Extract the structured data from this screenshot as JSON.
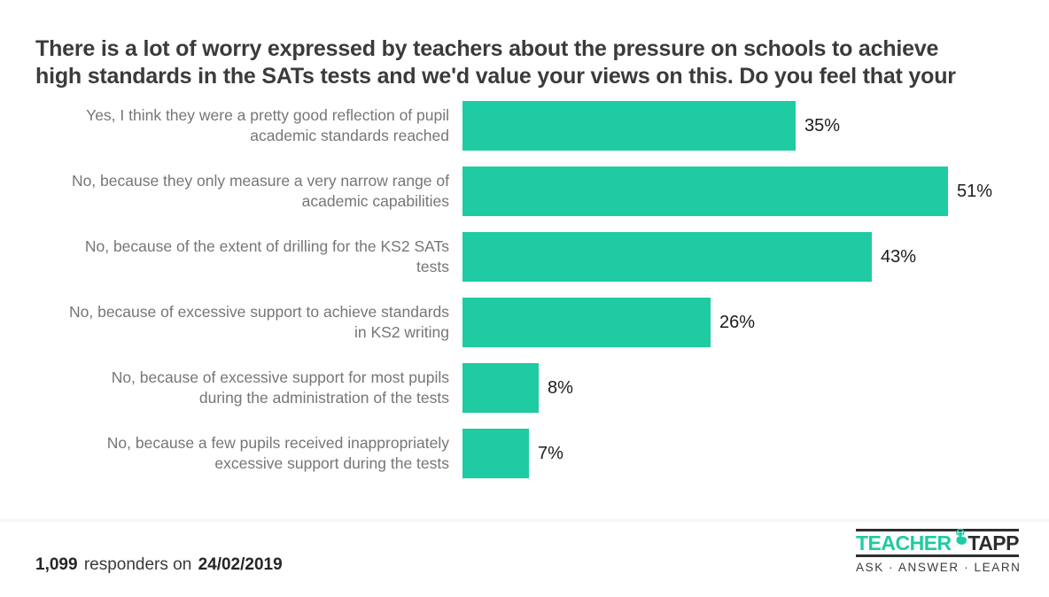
{
  "chart_data": {
    "type": "bar",
    "orientation": "horizontal",
    "title": "There is a lot of worry expressed by teachers about the pressure on schools to achieve high standards in the SATs tests and we'd value your views on this. Do you feel that your",
    "title_lines": [
      "There is a lot of worry expressed by teachers about the pressure on schools to achieve",
      "high standards in the SATs tests and we'd value your views on this. Do you feel that your"
    ],
    "categories": [
      "Yes, I think they were a pretty good reflection of pupil academic standards reached",
      "No, because they only measure a very narrow range of academic capabilities",
      "No, because of the extent of drilling for the KS2 SATs tests",
      "No, because of excessive support to achieve standards in KS2 writing",
      "No, because of excessive support for most pupils during the administration of the tests",
      "No, because a few pupils received inappropriately excessive support during the tests"
    ],
    "category_lines": [
      [
        "Yes, I think they were a pretty good reflection of pupil",
        "academic standards reached"
      ],
      [
        "No, because they only measure a very narrow range of",
        "academic capabilities"
      ],
      [
        "No, because of the extent of drilling for the KS2 SATs",
        "tests"
      ],
      [
        "No, because of excessive support to achieve standards",
        "in KS2 writing"
      ],
      [
        "No, because of excessive support for most pupils",
        "during the administration of the tests"
      ],
      [
        "No, because a few pupils received inappropriately",
        "excessive support during the tests"
      ]
    ],
    "values": [
      35,
      51,
      43,
      26,
      8,
      7
    ],
    "value_labels": [
      "35%",
      "51%",
      "43%",
      "26%",
      "8%",
      "7%"
    ],
    "bar_color": "#1fcba2",
    "xlim": [
      0,
      61
    ],
    "grid": false,
    "legend": null
  },
  "footer": {
    "responders_count": "1,099",
    "responders_text": "responders on",
    "date": "24/02/2019"
  },
  "logo": {
    "brand_first": "TEACHER",
    "brand_second": "TAPP",
    "tagline": "ASK · ANSWER · LEARN",
    "accent_color": "#1fcba2",
    "icon": "tap-hand-icon"
  }
}
